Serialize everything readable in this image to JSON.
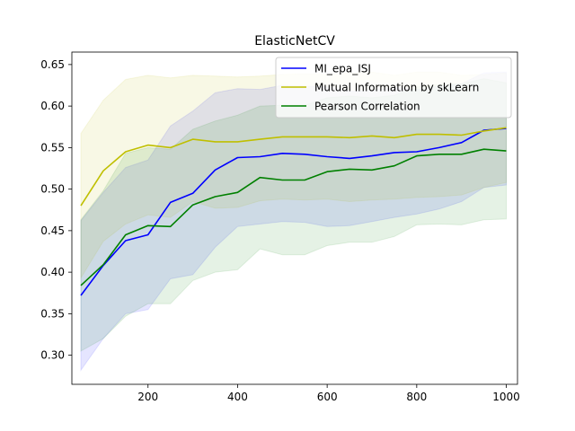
{
  "chart_data": {
    "type": "line",
    "title": "ElasticNetCV",
    "xlabel": "",
    "ylabel": "",
    "xlim": [
      30,
      1025
    ],
    "ylim": [
      0.265,
      0.665
    ],
    "xticks": [
      200,
      400,
      600,
      800,
      1000
    ],
    "xtick_labels": [
      "200",
      "400",
      "600",
      "800",
      "1000"
    ],
    "yticks": [
      0.3,
      0.35,
      0.4,
      0.45,
      0.5,
      0.55,
      0.6,
      0.65
    ],
    "ytick_labels": [
      "0.30",
      "0.35",
      "0.40",
      "0.45",
      "0.50",
      "0.55",
      "0.60",
      "0.65"
    ],
    "grid": false,
    "legend_position": "top-right",
    "x": [
      50,
      100,
      150,
      200,
      250,
      300,
      350,
      400,
      450,
      500,
      550,
      600,
      650,
      700,
      750,
      800,
      850,
      900,
      950,
      1000
    ],
    "series": [
      {
        "name": "MI_epa_ISJ",
        "color": "#0000ff",
        "values": [
          0.372,
          0.408,
          0.438,
          0.445,
          0.484,
          0.495,
          0.523,
          0.538,
          0.539,
          0.543,
          0.542,
          0.539,
          0.537,
          0.54,
          0.544,
          0.545,
          0.55,
          0.556,
          0.571,
          0.573
        ],
        "band_lower": [
          0.282,
          0.32,
          0.35,
          0.355,
          0.392,
          0.397,
          0.43,
          0.455,
          0.458,
          0.461,
          0.46,
          0.455,
          0.456,
          0.461,
          0.466,
          0.47,
          0.476,
          0.485,
          0.502,
          0.505
        ],
        "band_upper": [
          0.462,
          0.496,
          0.526,
          0.535,
          0.576,
          0.594,
          0.616,
          0.621,
          0.62,
          0.625,
          0.624,
          0.623,
          0.618,
          0.619,
          0.622,
          0.62,
          0.624,
          0.627,
          0.64,
          0.641
        ]
      },
      {
        "name": "Mutual Information by skLearn",
        "color": "#bfbf00",
        "values": [
          0.48,
          0.522,
          0.545,
          0.553,
          0.55,
          0.56,
          0.557,
          0.557,
          0.56,
          0.563,
          0.563,
          0.563,
          0.562,
          0.564,
          0.562,
          0.566,
          0.566,
          0.565,
          0.57,
          0.574
        ],
        "band_lower": [
          0.393,
          0.437,
          0.458,
          0.469,
          0.466,
          0.485,
          0.477,
          0.478,
          0.486,
          0.488,
          0.487,
          0.488,
          0.485,
          0.487,
          0.488,
          0.49,
          0.491,
          0.493,
          0.502,
          0.508
        ],
        "band_upper": [
          0.567,
          0.607,
          0.632,
          0.637,
          0.634,
          0.637,
          0.636,
          0.635,
          0.636,
          0.638,
          0.639,
          0.638,
          0.64,
          0.641,
          0.637,
          0.641,
          0.641,
          0.637,
          0.638,
          0.64
        ]
      },
      {
        "name": "Pearson Correlation",
        "color": "#008000",
        "values": [
          0.384,
          0.409,
          0.445,
          0.456,
          0.455,
          0.481,
          0.491,
          0.496,
          0.514,
          0.511,
          0.511,
          0.521,
          0.524,
          0.523,
          0.528,
          0.54,
          0.542,
          0.542,
          0.548,
          0.546
        ],
        "band_lower": [
          0.305,
          0.32,
          0.347,
          0.362,
          0.362,
          0.39,
          0.4,
          0.403,
          0.428,
          0.421,
          0.421,
          0.432,
          0.436,
          0.436,
          0.443,
          0.457,
          0.458,
          0.457,
          0.463,
          0.464
        ],
        "band_upper": [
          0.463,
          0.498,
          0.543,
          0.55,
          0.548,
          0.572,
          0.582,
          0.589,
          0.6,
          0.601,
          0.601,
          0.61,
          0.612,
          0.61,
          0.613,
          0.623,
          0.626,
          0.627,
          0.633,
          0.628
        ]
      }
    ]
  }
}
